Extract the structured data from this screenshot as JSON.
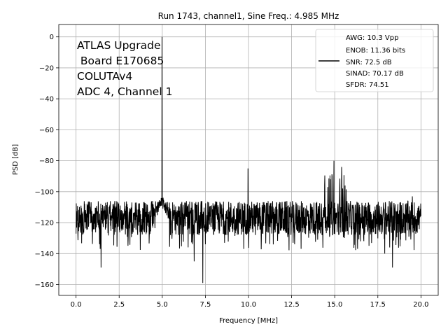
{
  "chart_data": {
    "type": "line",
    "title": "Run 1743, channel1, Sine Freq.: 4.985 MHz",
    "xlabel": "Frequency [MHz]",
    "ylabel": "PSD [dB]",
    "xlim": [
      -1.0,
      21.0
    ],
    "ylim": [
      -167,
      8
    ],
    "xticks": [
      0.0,
      2.5,
      5.0,
      7.5,
      10.0,
      12.5,
      15.0,
      17.5,
      20.0
    ],
    "xtick_labels": [
      "0.0",
      "2.5",
      "5.0",
      "7.5",
      "10.0",
      "12.5",
      "15.0",
      "17.5",
      "20.0"
    ],
    "yticks": [
      0,
      -20,
      -40,
      -60,
      -80,
      -100,
      -120,
      -140,
      -160
    ],
    "ytick_labels": [
      "0",
      "−20",
      "−40",
      "−60",
      "−80",
      "−100",
      "−120",
      "−140",
      "−160"
    ],
    "grid": true,
    "legend_position": "top-right",
    "line_color": "#000000",
    "annotation_lines": [
      "ATLAS Upgrade",
      " Board E170685",
      "COLUTAv4",
      "ADC 4, Channel 1"
    ],
    "legend_lines": [
      "AWG: 10.3 Vpp",
      "ENOB: 11.36 bits",
      "SNR: 72.5 dB",
      "SINAD: 70.17 dB",
      "SFDR: 74.51"
    ],
    "series": [
      {
        "noise_floor_db": -118,
        "noise_range_db": [
          -128,
          -106
        ],
        "peaks": [
          {
            "x": 4.985,
            "y": 0
          },
          {
            "x": 9.97,
            "y": -85
          },
          {
            "x": 14.955,
            "y": -80
          },
          {
            "x": 15.4,
            "y": -84
          }
        ],
        "dips": [
          {
            "x": 1.45,
            "y": -149
          },
          {
            "x": 7.35,
            "y": -159
          },
          {
            "x": 6.85,
            "y": -145
          },
          {
            "x": 18.35,
            "y": -149
          },
          {
            "x": 17.9,
            "y": -140
          }
        ]
      }
    ]
  }
}
